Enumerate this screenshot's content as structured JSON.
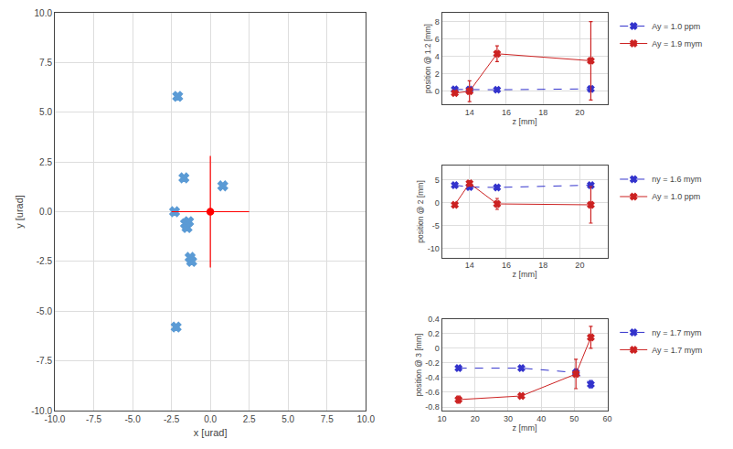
{
  "chart_data": [
    {
      "type": "scatter",
      "x_label": "x [urad]",
      "y_label": "y [urad]",
      "xlim": [
        -10,
        10
      ],
      "ylim": [
        -10,
        10
      ],
      "xticks": [
        {
          "value": -10.0,
          "label": "-10.0"
        },
        {
          "value": -7.5,
          "label": "-7.5"
        },
        {
          "value": -5.0,
          "label": "-5.0"
        },
        {
          "value": -2.5,
          "label": "-2.5"
        },
        {
          "value": 0.0,
          "label": "0.0"
        },
        {
          "value": 2.5,
          "label": "2.5"
        },
        {
          "value": 5.0,
          "label": "5.0"
        },
        {
          "value": 7.5,
          "label": "7.5"
        },
        {
          "value": 10.0,
          "label": "10.0"
        }
      ],
      "yticks": [
        {
          "value": -10.0,
          "label": "-10.0"
        },
        {
          "value": -7.5,
          "label": "-7.5"
        },
        {
          "value": -5.0,
          "label": "-5.0"
        },
        {
          "value": -2.5,
          "label": "-2.5"
        },
        {
          "value": 0.0,
          "label": "0.0"
        },
        {
          "value": 2.5,
          "label": "2.5"
        },
        {
          "value": 5.0,
          "label": "5.0"
        },
        {
          "value": 7.5,
          "label": "7.5"
        },
        {
          "value": 10.0,
          "label": "10.0"
        }
      ],
      "grid": true,
      "series": [
        {
          "color": "#5b9bd5",
          "marker": "x",
          "x": [
            -2.1,
            -1.7,
            -1.6,
            -1.5,
            -1.4,
            -1.3,
            -1.2,
            0.8,
            -2.2,
            -2.3
          ],
          "values": [
            5.8,
            1.7,
            -0.6,
            -0.8,
            -0.5,
            -2.3,
            -2.5,
            1.3,
            -5.8,
            0.0
          ]
        },
        {
          "color": "red",
          "marker": "circle",
          "x": [
            0.0
          ],
          "values": [
            0.0
          ],
          "x_errors": [
            2.5
          ],
          "errors": [
            2.8
          ]
        }
      ]
    },
    {
      "type": "line",
      "x_label": "z [mm]",
      "y_label": "position @ 1.2 [mm]",
      "xlim": [
        12.5,
        21.5
      ],
      "ylim": [
        -1.5,
        9.0
      ],
      "xticks": [
        14,
        16,
        18,
        20
      ],
      "yticks": [
        0,
        2,
        4,
        6,
        8
      ],
      "grid": true,
      "legend": "right",
      "series": [
        {
          "name": "Ay = 1.0 ppm",
          "color": "#3333cc",
          "marker": "x",
          "line_style": "dashed",
          "x": [
            13.2,
            14.0,
            15.5,
            20.6
          ],
          "values": [
            0.21,
            0.19,
            0.17,
            0.27
          ],
          "errors": [
            0.06,
            0.06,
            0.04,
            0.06
          ]
        },
        {
          "name": "Ay = 1.9 mym",
          "color": "#cc2222",
          "marker": "x",
          "line_style": "solid",
          "x": [
            13.2,
            14.0,
            15.5,
            20.6
          ],
          "values": [
            -0.22,
            0.0,
            4.3,
            3.5
          ],
          "errors": [
            0.15,
            1.2,
            0.9,
            4.5
          ]
        }
      ]
    },
    {
      "type": "line",
      "x_label": "z [mm]",
      "y_label": "position @ 2 [mm]",
      "xlim": [
        12.5,
        21.5
      ],
      "ylim": [
        -12,
        8
      ],
      "xticks": [
        14,
        16,
        18,
        20
      ],
      "yticks": [
        -10,
        -5,
        0,
        5
      ],
      "grid": true,
      "legend": "right",
      "series": [
        {
          "name": "ny = 1.6 mym",
          "color": "#3333cc",
          "marker": "x",
          "line_style": "dashed",
          "x": [
            13.2,
            14.0,
            15.5,
            20.6
          ],
          "values": [
            3.8,
            3.4,
            3.3,
            3.8
          ],
          "errors": [
            0.2,
            0.15,
            0.15,
            0.3
          ]
        },
        {
          "name": "Ay = 1.0 ppm",
          "color": "#cc2222",
          "marker": "x",
          "line_style": "solid",
          "x": [
            13.2,
            14.0,
            15.5,
            20.6
          ],
          "values": [
            -0.5,
            4.2,
            -0.3,
            -0.5
          ],
          "errors": [
            0.3,
            0.6,
            1.2,
            4.0
          ]
        }
      ]
    },
    {
      "type": "line",
      "x_label": "z [mm]",
      "y_label": "position @ 3 [mm]",
      "xlim": [
        10,
        60
      ],
      "ylim": [
        -0.85,
        0.4
      ],
      "xticks": [
        10,
        20,
        30,
        40,
        50,
        60
      ],
      "yticks": [
        -0.8,
        -0.6,
        -0.4,
        -0.2,
        0,
        0.2,
        0.4
      ],
      "grid": true,
      "legend": "right",
      "series": [
        {
          "name": "ny = 1.7 mym",
          "color": "#3333cc",
          "marker": "x",
          "line_style": "dashed",
          "x": [
            15.0,
            34.0,
            50.5,
            55.0
          ],
          "values": [
            -0.27,
            -0.27,
            -0.33,
            -0.49
          ],
          "errors": [
            0.01,
            0.01,
            0.05,
            0.05
          ]
        },
        {
          "name": "Ay = 1.7 mym",
          "color": "#cc2222",
          "marker": "x",
          "line_style": "solid",
          "x": [
            15.0,
            34.0,
            50.5,
            55.0
          ],
          "values": [
            -0.7,
            -0.65,
            -0.35,
            0.15
          ],
          "errors": [
            0.05,
            0.03,
            0.2,
            0.15
          ]
        }
      ]
    }
  ]
}
